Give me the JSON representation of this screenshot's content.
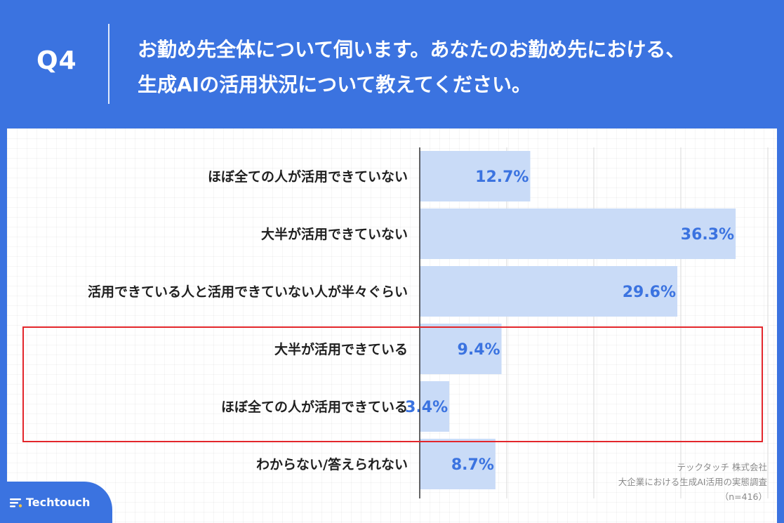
{
  "header": {
    "question": "Q4",
    "title_line1": "お勤め先全体について伺います。あなたのお勤め先における、",
    "title_line2": "生成AIの活用状況について教えてください。"
  },
  "chart_data": {
    "type": "bar",
    "orientation": "horizontal",
    "categories": [
      "ほぼ全ての人が活用できていない",
      "大半が活用できていない",
      "活用できている人と活用できていない人が半々ぐらい",
      "大半が活用できている",
      "ほぼ全ての人が活用できている",
      "わからない/答えられない"
    ],
    "values": [
      12.7,
      36.3,
      29.6,
      9.4,
      3.4,
      8.7
    ],
    "value_labels": [
      "12.7%",
      "36.3%",
      "29.6%",
      "9.4%",
      "3.4%",
      "8.7%"
    ],
    "xlim": [
      0,
      40
    ],
    "grid": true,
    "bar_color": "#c9dbf7",
    "label_color": "#3b73e0",
    "highlighted_categories": [
      "大半が活用できている",
      "ほぼ全ての人が活用できている"
    ],
    "highlight_color": "#e3262b"
  },
  "source": {
    "company": "テックタッチ 株式会社",
    "survey": "大企業における生成AI活用の実態調査",
    "n": "（n=416）"
  },
  "brand": {
    "name": "Techtouch"
  }
}
